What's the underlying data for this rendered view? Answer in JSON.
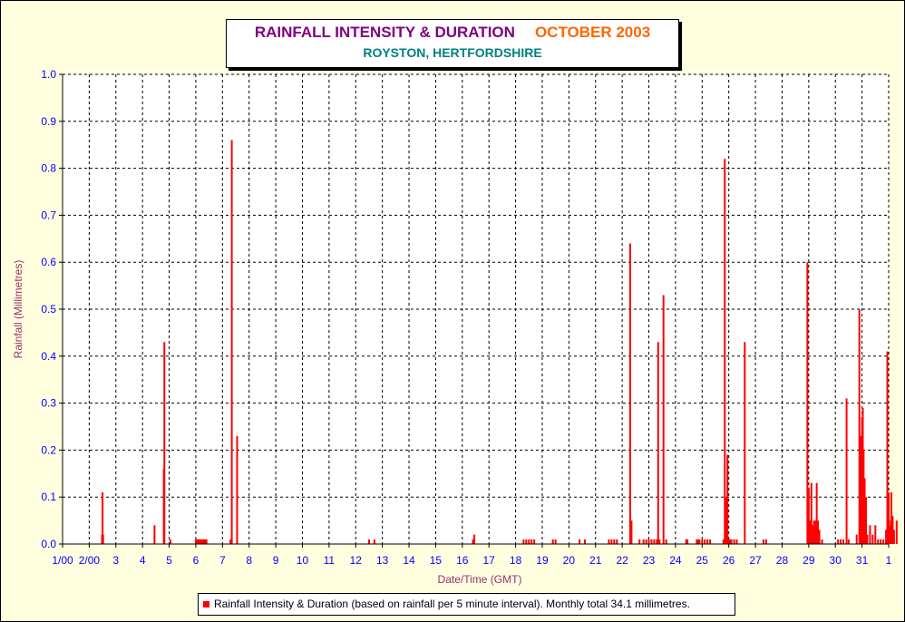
{
  "title": {
    "main": "RAINFALL INTENSITY & DURATION",
    "month": "OCTOBER 2003",
    "subtitle": "ROYSTON, HERTFORDSHIRE"
  },
  "colors": {
    "bar": "#ff0000",
    "title": "#800080",
    "month": "#ff6600",
    "subtitle": "#008080",
    "ticks": "#0000ff",
    "axis_label": "#993366",
    "plot_bg": "#ffffff",
    "page_bg": "#ffffe0"
  },
  "chart_data": {
    "type": "bar",
    "title": "RAINFALL INTENSITY & DURATION OCTOBER 2003",
    "subtitle": "ROYSTON, HERTFORDSHIRE",
    "xlabel": "Date/Time (GMT)",
    "ylabel": "Rainfall (Millimetres)",
    "ylim": [
      0,
      1.0
    ],
    "xlim_days": [
      1,
      32
    ],
    "y_ticks": [
      "0.0",
      "0.1",
      "0.2",
      "0.3",
      "0.4",
      "0.5",
      "0.6",
      "0.7",
      "0.8",
      "0.9",
      "1.0"
    ],
    "x_ticks": [
      "1/00",
      "2/00",
      "3",
      "4",
      "5",
      "6",
      "7",
      "8",
      "9",
      "10",
      "11",
      "12",
      "13",
      "14",
      "15",
      "16",
      "17",
      "18",
      "19",
      "20",
      "21",
      "22",
      "23",
      "24",
      "25",
      "26",
      "27",
      "28",
      "29",
      "30",
      "31",
      "1"
    ],
    "grid": true,
    "legend_placement": "bottom",
    "series": [
      {
        "name": "Rainfall Intensity & Duration (based on rainfall per 5 minute interval). Monthly total 34.1 millimetres.",
        "x": [
          2.48,
          2.5,
          2.52,
          4.45,
          4.8,
          4.82,
          5.05,
          6.0,
          6.05,
          6.1,
          6.15,
          6.2,
          6.25,
          6.3,
          6.35,
          6.4,
          7.3,
          7.35,
          7.55,
          12.5,
          12.7,
          16.4,
          16.45,
          18.3,
          18.4,
          18.5,
          18.6,
          18.7,
          19.4,
          19.5,
          20.4,
          20.6,
          21.5,
          21.6,
          21.7,
          21.8,
          22.3,
          22.35,
          22.65,
          22.8,
          22.9,
          23.0,
          23.1,
          23.2,
          23.3,
          23.35,
          23.4,
          23.55,
          23.65,
          24.4,
          24.45,
          24.8,
          24.85,
          24.9,
          25.0,
          25.1,
          25.2,
          25.3,
          25.8,
          25.85,
          25.9,
          25.95,
          26.0,
          26.05,
          26.1,
          26.2,
          26.3,
          26.6,
          27.3,
          27.4,
          28.95,
          29.0,
          29.05,
          29.1,
          29.15,
          29.2,
          29.25,
          29.3,
          29.35,
          29.4,
          29.5,
          30.1,
          30.2,
          30.3,
          30.42,
          30.5,
          30.8,
          30.9,
          30.93,
          30.96,
          31.0,
          31.03,
          31.06,
          31.1,
          31.15,
          31.2,
          31.3,
          31.4,
          31.5,
          31.6,
          31.7,
          31.8,
          31.9,
          31.95,
          32.0,
          32.05,
          32.08,
          32.1,
          32.15,
          32.2,
          32.3
        ],
        "values": [
          0.02,
          0.11,
          0.02,
          0.04,
          0.16,
          0.43,
          0.01,
          0.01,
          0.01,
          0.01,
          0.01,
          0.01,
          0.01,
          0.01,
          0.01,
          0.01,
          0.01,
          0.86,
          0.23,
          0.01,
          0.01,
          0.01,
          0.02,
          0.01,
          0.01,
          0.01,
          0.01,
          0.01,
          0.01,
          0.01,
          0.01,
          0.01,
          0.01,
          0.01,
          0.01,
          0.01,
          0.64,
          0.05,
          0.01,
          0.01,
          0.01,
          0.01,
          0.01,
          0.01,
          0.01,
          0.43,
          0.01,
          0.53,
          0.01,
          0.01,
          0.01,
          0.01,
          0.01,
          0.01,
          0.01,
          0.01,
          0.01,
          0.01,
          0.01,
          0.82,
          0.1,
          0.19,
          0.01,
          0.01,
          0.01,
          0.01,
          0.01,
          0.43,
          0.01,
          0.01,
          0.6,
          0.12,
          0.05,
          0.13,
          0.04,
          0.05,
          0.05,
          0.13,
          0.05,
          0.03,
          0.01,
          0.01,
          0.01,
          0.01,
          0.31,
          0.01,
          0.02,
          0.5,
          0.16,
          0.23,
          0.27,
          0.29,
          0.2,
          0.14,
          0.1,
          0.02,
          0.04,
          0.02,
          0.04,
          0.01,
          0.01,
          0.01,
          0.03,
          0.41,
          0.11,
          0.04,
          0.05,
          0.11,
          0.06,
          0.03,
          0.05
        ]
      }
    ]
  },
  "legend": {
    "text": "Rainfall Intensity & Duration (based on rainfall per 5 minute interval). Monthly total 34.1 millimetres."
  }
}
